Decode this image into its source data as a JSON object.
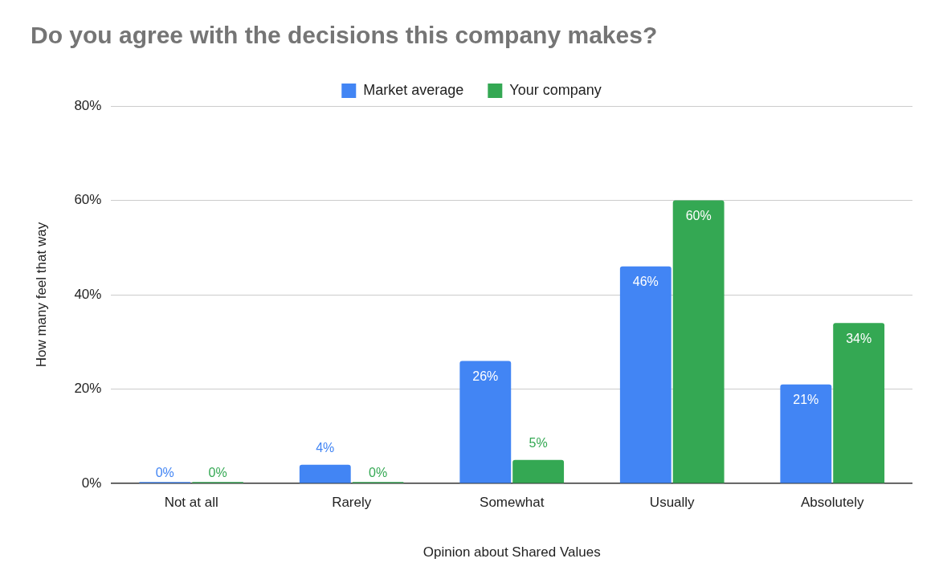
{
  "chart_data": {
    "type": "bar",
    "title": "Do you agree with the decisions this company makes?",
    "xlabel": "Opinion about Shared Values",
    "ylabel": "How many feel that way",
    "categories": [
      "Not at all",
      "Rarely",
      "Somewhat",
      "Usually",
      "Absolutely"
    ],
    "series": [
      {
        "name": "Market average",
        "color": "#4285f4",
        "values": [
          0,
          4,
          26,
          46,
          21
        ],
        "value_labels": [
          "0%",
          "4%",
          "26%",
          "46%",
          "21%"
        ]
      },
      {
        "name": "Your company",
        "color": "#34a853",
        "values": [
          0,
          0,
          5,
          60,
          34
        ],
        "value_labels": [
          "0%",
          "0%",
          "5%",
          "60%",
          "34%"
        ]
      }
    ],
    "ylim": [
      0,
      80
    ],
    "yticks": [
      {
        "value": 0,
        "label": "0%"
      },
      {
        "value": 20,
        "label": "20%"
      },
      {
        "value": 40,
        "label": "40%"
      },
      {
        "value": 60,
        "label": "60%"
      },
      {
        "value": 80,
        "label": "80%"
      }
    ],
    "grid": "y",
    "legend": "top"
  }
}
